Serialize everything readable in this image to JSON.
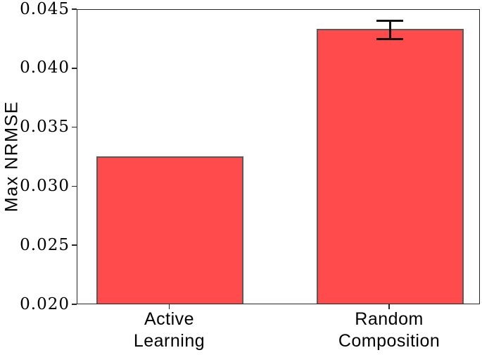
{
  "chart_data": {
    "type": "bar",
    "title": "",
    "xlabel": "",
    "ylabel": "Max NRMSE",
    "categories": [
      "Active Learning",
      "Random Composition"
    ],
    "category_lines": [
      [
        "Active",
        "Learning"
      ],
      [
        "Random",
        "Composition"
      ]
    ],
    "values": [
      0.0325,
      0.0433
    ],
    "errors": [
      0,
      0.0008
    ],
    "ylim": [
      0.02,
      0.045
    ],
    "ytick_labels": [
      "0.045",
      "0.040",
      "0.035",
      "0.030",
      "0.025",
      "0.020"
    ],
    "grid": false,
    "legend": "none",
    "bar_color": "#ff4b4b",
    "bar_edge_color": "#595959",
    "error_bar_color": "#111111",
    "axis_color": "#262626"
  }
}
